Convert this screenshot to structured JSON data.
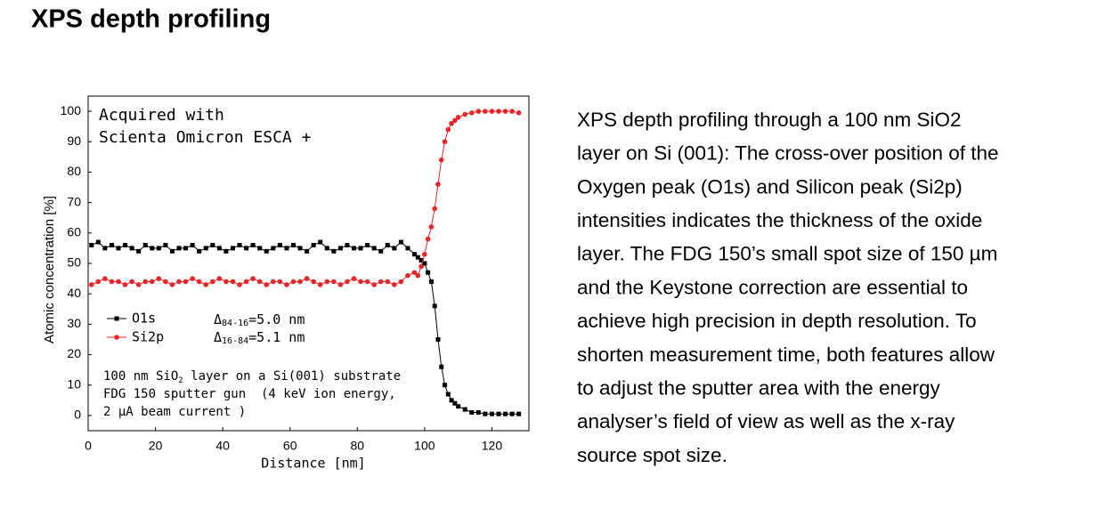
{
  "header": {
    "title": "XPS depth profiling"
  },
  "chart_data": {
    "type": "line",
    "x_label": "Distance [nm]",
    "y_label": "Atomic concentration [%]",
    "xlim": [
      0,
      131
    ],
    "ylim": [
      -5,
      105
    ],
    "xticks": [
      0,
      20,
      40,
      60,
      80,
      100,
      120
    ],
    "yticks": [
      0,
      10,
      20,
      30,
      40,
      50,
      60,
      70,
      80,
      90,
      100
    ],
    "grid": false,
    "x": [
      1,
      3,
      5,
      7,
      9,
      11,
      13,
      15,
      17,
      19,
      21,
      23,
      25,
      27,
      29,
      31,
      33,
      35,
      37,
      39,
      41,
      43,
      45,
      47,
      49,
      51,
      53,
      55,
      57,
      59,
      61,
      63,
      65,
      67,
      69,
      71,
      73,
      75,
      77,
      79,
      81,
      83,
      85,
      87,
      89,
      91,
      93,
      95,
      97,
      98,
      99,
      100,
      101,
      102,
      103,
      104,
      105,
      106,
      107,
      108,
      109,
      110,
      112,
      114,
      116,
      118,
      120,
      122,
      124,
      126,
      128
    ],
    "series": [
      {
        "name": "O1s",
        "color": "#000000",
        "marker": "square",
        "values": [
          56,
          57,
          55,
          56,
          55,
          56,
          55,
          54,
          56,
          55,
          55,
          56,
          54,
          55,
          55,
          56,
          54,
          55,
          56,
          55,
          54,
          55,
          56,
          55,
          56,
          55,
          54,
          55,
          56,
          55,
          56,
          55,
          54,
          56,
          57,
          55,
          54,
          55,
          56,
          55,
          55,
          56,
          55,
          54,
          56,
          55,
          57,
          55,
          53,
          52,
          51,
          50,
          47,
          44,
          36,
          25,
          16,
          10,
          7,
          5,
          4,
          3,
          2,
          1,
          1,
          0.5,
          0.5,
          0.5,
          0.5,
          0.5,
          0.5
        ]
      },
      {
        "name": "Si2p",
        "color": "#e8262a",
        "marker": "circle",
        "values": [
          43,
          44,
          45,
          44,
          44,
          43,
          44,
          43,
          44,
          44,
          45,
          44,
          43,
          44,
          44,
          45,
          44,
          43,
          44,
          45,
          44,
          44,
          43,
          44,
          45,
          44,
          43,
          44,
          44,
          43,
          44,
          44,
          45,
          44,
          43,
          44,
          44,
          43,
          44,
          45,
          44,
          44,
          43,
          44,
          44,
          43,
          44,
          46,
          47,
          46,
          49,
          53,
          58,
          62,
          68,
          76,
          84,
          90,
          94,
          96,
          97,
          98,
          99,
          99.5,
          100,
          100,
          100,
          100,
          100,
          100,
          99.5
        ]
      }
    ],
    "annotations": {
      "acquired": [
        "Acquired with",
        "Scienta Omicron ESCA +"
      ],
      "deltas": [
        {
          "symbol": "Δ",
          "sub": "84-16",
          "text": "=5.0 nm"
        },
        {
          "symbol": "Δ",
          "sub": "16-84",
          "text": "=5.1 nm"
        }
      ],
      "note": {
        "line1": [
          "100 nm SiO",
          "2",
          " layer on a Si(001) substrate"
        ],
        "line2": "FDG 150 sputter gun  (4 keV ion energy,",
        "line3": "2 µA beam current )"
      }
    }
  },
  "text": {
    "lines": [
      "XPS depth profiling through a 100 nm SiO2",
      "layer on Si (001): The cross-over position of the",
      "Oxygen peak (O1s) and Silicon peak (Si2p)",
      "intensities indicates the thickness of the oxide",
      "layer. The FDG 150’s small spot size of 150 µm",
      "and the Keystone correction are essential to",
      "achieve high precision in depth resolution. To",
      "shorten measurement time, both features allow",
      "to adjust the sputter area with the energy",
      "analyser’s field of view as well as the x-ray",
      "source spot size."
    ]
  }
}
